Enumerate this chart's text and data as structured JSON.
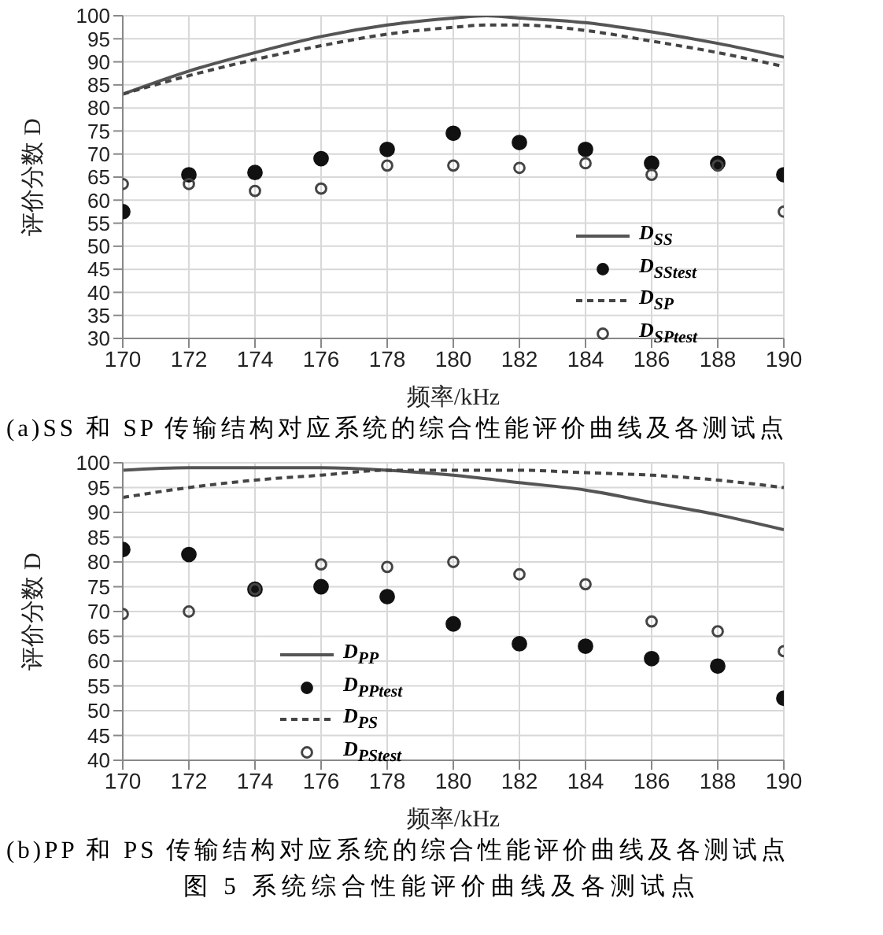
{
  "chart_data": [
    {
      "type": "line",
      "title": "(a)SS 和 SP 传输结构对应系统的综合性能评价曲线及各测试点",
      "xlabel": "频率/kHz",
      "ylabel": "评价分数 D",
      "xlim": [
        170,
        190
      ],
      "xticks": [
        170,
        172,
        174,
        176,
        178,
        180,
        182,
        184,
        186,
        188,
        190
      ],
      "ylim": [
        30,
        100
      ],
      "yticks": [
        30,
        35,
        40,
        45,
        50,
        55,
        60,
        65,
        70,
        75,
        80,
        85,
        90,
        95,
        100
      ],
      "grid": true,
      "legend": "right",
      "series": [
        {
          "name": "D$_{SS}$",
          "line_style": "solid",
          "marker": "none",
          "color": "#555555",
          "x": [
            170,
            172,
            174,
            176,
            178,
            180,
            181,
            182,
            184,
            186,
            188,
            190
          ],
          "values": [
            83,
            88,
            92,
            95.5,
            98,
            99.5,
            100,
            99.5,
            98.5,
            96.5,
            94,
            91
          ]
        },
        {
          "name": "D$_{SStest}$",
          "type": "scatter",
          "marker": "circle",
          "color": "#111111",
          "x": [
            170,
            172,
            174,
            176,
            178,
            180,
            182,
            184,
            186,
            188,
            190
          ],
          "values": [
            57.5,
            65.5,
            66,
            69,
            71,
            74.5,
            72.5,
            71,
            68,
            68,
            65.5
          ]
        },
        {
          "name": "D$_{SP}$",
          "line_style": "dashed",
          "marker": "none",
          "color": "#444444",
          "x": [
            170,
            172,
            174,
            176,
            178,
            180,
            181,
            182,
            184,
            186,
            188,
            190
          ],
          "values": [
            83,
            87,
            90.5,
            93.5,
            96,
            97.5,
            98,
            98,
            96.8,
            94.5,
            92,
            89
          ]
        },
        {
          "name": "D$_{SPtest}$",
          "type": "scatter",
          "marker": "circle",
          "color": "#444444",
          "x": [
            170,
            172,
            174,
            176,
            178,
            180,
            182,
            184,
            186,
            188,
            190
          ],
          "values": [
            63.5,
            63.5,
            62,
            62.5,
            67.5,
            67.5,
            67,
            68,
            65.5,
            67.5,
            57.5
          ]
        }
      ]
    },
    {
      "type": "line",
      "title": "(b)PP 和 PS 传输结构对应系统的综合性能评价曲线及各测试点",
      "xlabel": "频率/kHz",
      "ylabel": "评价分数 D",
      "xlim": [
        170,
        190
      ],
      "xticks": [
        170,
        172,
        174,
        176,
        178,
        180,
        182,
        184,
        186,
        188,
        190
      ],
      "ylim": [
        40,
        100
      ],
      "yticks": [
        40,
        45,
        50,
        55,
        60,
        65,
        70,
        75,
        80,
        85,
        90,
        95,
        100
      ],
      "grid": true,
      "legend": "bottom left",
      "annotations": [
        "图 5  系统综合性能评价曲线及各测试点"
      ],
      "series": [
        {
          "name": "D$_{PP}$",
          "line_style": "solid",
          "marker": "none",
          "color": "#555555",
          "x": [
            170,
            172,
            174,
            176,
            178,
            180,
            182,
            184,
            186,
            188,
            190
          ],
          "values": [
            98.5,
            99,
            99,
            99,
            98.5,
            97.5,
            96,
            94.5,
            92,
            89.5,
            86.5
          ]
        },
        {
          "name": "D$_{PPtest}$",
          "type": "scatter",
          "marker": "circle",
          "color": "#111111",
          "x": [
            170,
            172,
            174,
            176,
            178,
            180,
            182,
            184,
            186,
            188,
            190
          ],
          "values": [
            82.5,
            81.5,
            74.5,
            75,
            73,
            67.5,
            63.5,
            63,
            60.5,
            59,
            52.5
          ]
        },
        {
          "name": "D$_{PS}$",
          "line_style": "dashed",
          "marker": "none",
          "color": "#444444",
          "x": [
            170,
            172,
            174,
            176,
            178,
            180,
            182,
            184,
            186,
            188,
            190
          ],
          "values": [
            93,
            95,
            96.5,
            97.5,
            98.5,
            98.5,
            98.5,
            98,
            97.5,
            96.5,
            95
          ]
        },
        {
          "name": "D$_{PStest}$",
          "type": "scatter",
          "marker": "circle",
          "color": "#444444",
          "x": [
            170,
            172,
            174,
            176,
            178,
            180,
            182,
            184,
            186,
            188,
            190
          ],
          "values": [
            69.5,
            70,
            74.5,
            79.5,
            79,
            80,
            77.5,
            75.5,
            68,
            66,
            62
          ]
        }
      ]
    }
  ]
}
